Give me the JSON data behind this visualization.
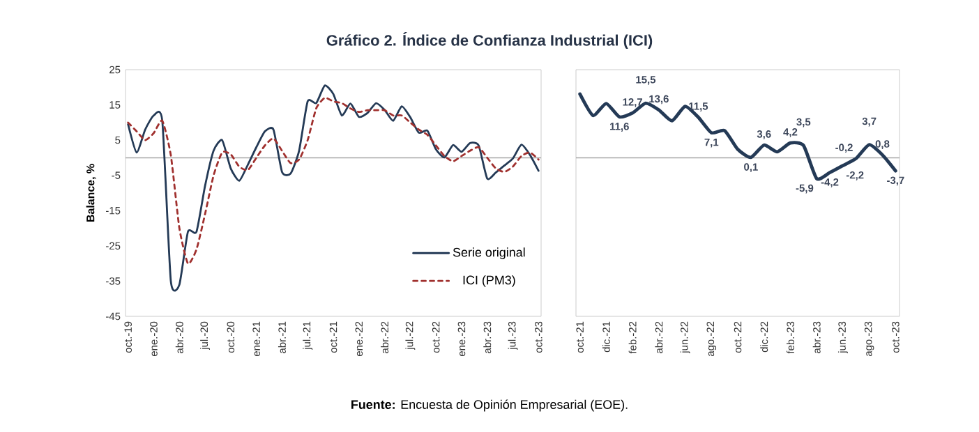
{
  "chart_data": [
    {
      "type": "line",
      "title": "Gráfico 2. Índice de Confianza Industrial (ICI)",
      "ylabel": "Balance, %",
      "annotations": [
        "**Fuente:** Encuesta de Opinión Empresarial (EOE)."
      ],
      "categories": [
        "oct.-19",
        null,
        null,
        "ene.-20",
        null,
        null,
        "abr.-20",
        null,
        null,
        "jul.-20",
        null,
        null,
        "oct.-20",
        null,
        null,
        "ene.-21",
        null,
        null,
        "abr.-21",
        null,
        null,
        "jul.-21",
        null,
        null,
        "oct.-21",
        null,
        null,
        "ene.-22",
        null,
        null,
        "abr.-22",
        null,
        null,
        "jul.-22",
        null,
        null,
        "oct.-22",
        null,
        null,
        "ene.-23",
        null,
        null,
        "abr.-23",
        null,
        null,
        "jul.-23",
        null,
        null,
        "oct.-23"
      ],
      "series": [
        {
          "name": "Serie original",
          "color": "#243a56",
          "line_style": "solid",
          "values": [
            9.5,
            1.5,
            8,
            12,
            10.5,
            -35,
            -36,
            -21,
            -21,
            -8,
            2,
            5,
            -3,
            -6.5,
            -2,
            3,
            7.5,
            8,
            -4,
            -4.5,
            2,
            16,
            15.5,
            20.5,
            18.1,
            12.0,
            15.4,
            11.6,
            12.7,
            15.5,
            13.6,
            10.5,
            14.6,
            11.5,
            7.1,
            7.7,
            2.4,
            0.1,
            3.6,
            1.7,
            4.2,
            3.5,
            -5.9,
            -4.2,
            -2.2,
            -0.2,
            3.7,
            0.8,
            -3.7
          ]
        },
        {
          "name": "ICI (PM3)",
          "color": "#a0302e",
          "line_style": "dashed",
          "values": [
            10,
            7.5,
            5,
            7,
            10.5,
            0.7,
            -20,
            -30,
            -26,
            -16,
            -5,
            1.5,
            1,
            -2.5,
            -3.5,
            0,
            3.5,
            5.5,
            2,
            -1.5,
            -0.5,
            5,
            14,
            17,
            16,
            15.5,
            14,
            13,
            13.5,
            13.5,
            13.5,
            12,
            12,
            10,
            8,
            6.5,
            3.5,
            0.5,
            -1,
            0.5,
            2,
            3,
            0,
            -3,
            -4,
            -2.5,
            0.5,
            1.5,
            -0.5
          ]
        }
      ],
      "ylim": [
        -45,
        25
      ],
      "yticks": [
        -45,
        -35,
        -25,
        -15,
        -5,
        5,
        15,
        25
      ],
      "ref_lines": [
        {
          "axis": "y",
          "value": 0,
          "color": "#a6a6a6"
        }
      ],
      "legend": "bottom right"
    },
    {
      "type": "line",
      "categories": [
        "oct.-21",
        null,
        "dic.-21",
        null,
        "feb.-22",
        null,
        "abr.-22",
        null,
        "jun.-22",
        null,
        "ago.-22",
        null,
        "oct.-22",
        null,
        "dic.-22",
        null,
        "feb.-23",
        null,
        "abr.-23",
        null,
        "jun.-23",
        null,
        "ago.-23",
        null,
        "oct.-23"
      ],
      "series": [
        {
          "color": "#243a56",
          "line_style": "solid",
          "values": [
            18.1,
            12.0,
            15.4,
            11.6,
            12.7,
            15.5,
            13.6,
            10.5,
            14.6,
            11.5,
            7.1,
            7.7,
            2.4,
            0.1,
            3.6,
            1.7,
            4.2,
            3.5,
            -5.9,
            -4.2,
            -2.2,
            -0.2,
            3.7,
            0.8,
            -3.7
          ],
          "value_labels": [
            null,
            null,
            null,
            "11,6",
            "12,7",
            "15,5",
            "13,6",
            null,
            null,
            "11,5",
            "7,1",
            null,
            null,
            "0,1",
            "3,6",
            null,
            "4,2",
            "3,5",
            "-5,9",
            "-4,2",
            "-2,2",
            "-0,2",
            "3,7",
            "0,8",
            "-3,7"
          ]
        }
      ],
      "ylim": [
        -45,
        25
      ],
      "tick_labels": "x",
      "ref_lines": [
        {
          "axis": "y",
          "value": 0,
          "color": "#a6a6a6"
        }
      ]
    }
  ]
}
